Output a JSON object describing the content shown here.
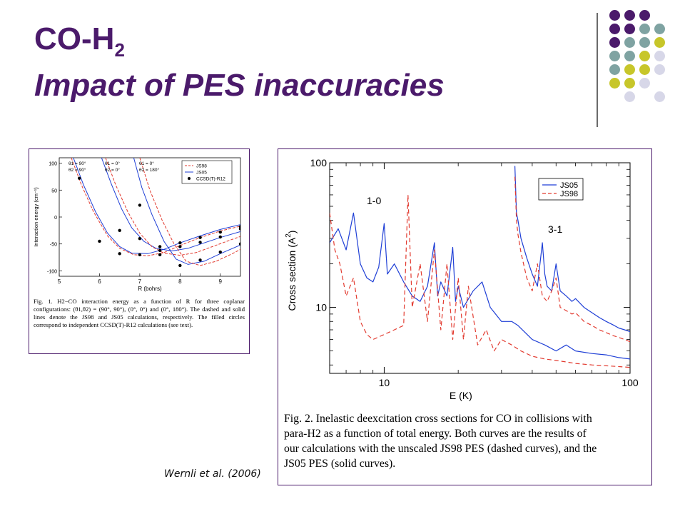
{
  "slide": {
    "title_main": "CO-H",
    "title_sub": "2",
    "title_line2": "Impact of PES inaccuracies",
    "credit": "Wernli et al. (2006)",
    "colors": {
      "title": "#4b1a6b",
      "dot_purple": "#4b1a6b",
      "dot_teal": "#7fa3a2",
      "dot_olive": "#c7c62a",
      "dot_lavender": "#d7d7e8",
      "js05": "#1f3fd6",
      "js98": "#e23a2f"
    }
  },
  "figure1": {
    "caption": "Fig. 1. H2−CO interaction energy as a function of R for three coplanar configurations: (θ1,θ2) = (90°, 90°), (0°, 0°) and (0°, 180°). The dashed and solid lines denote the JS98 and JS05 calculations, respectively. The filled circles correspond to independent CCSD(T)-R12 calculations (see text).",
    "chart_data": {
      "type": "line",
      "xlabel": "R (bohrs)",
      "ylabel": "Interaction energy (cm⁻¹)",
      "xlim": [
        5,
        9.5
      ],
      "ylim": [
        -110,
        110
      ],
      "x_ticks": [
        "5",
        "6",
        "7",
        "8",
        "9"
      ],
      "y_ticks": [
        "100",
        "50",
        "0",
        "-50",
        "-100"
      ],
      "legend": [
        "JS98",
        "JS05",
        "CCSD(T)-R12"
      ],
      "config_labels": [
        {
          "t1": "θ1 = 90°",
          "t2": "θ2 = 90°"
        },
        {
          "t1": "θ1 = 0°",
          "t2": "θ2 = 0°"
        },
        {
          "t1": "θ1 = 0°",
          "t2": "θ2 = 180°"
        }
      ],
      "series": [
        {
          "name": "JS05",
          "config": "90-90",
          "x": [
            5.35,
            5.6,
            5.9,
            6.2,
            6.5,
            6.8,
            7.2,
            7.6,
            8,
            8.5,
            9,
            9.5
          ],
          "y": [
            110,
            60,
            10,
            -30,
            -55,
            -67,
            -68,
            -60,
            -48,
            -35,
            -23,
            -14
          ]
        },
        {
          "name": "JS98",
          "config": "90-90",
          "x": [
            5.3,
            5.55,
            5.85,
            6.2,
            6.5,
            6.85,
            7.2,
            7.6,
            8,
            8.5,
            9,
            9.5
          ],
          "y": [
            110,
            60,
            10,
            -35,
            -58,
            -70,
            -72,
            -66,
            -53,
            -38,
            -26,
            -17
          ]
        },
        {
          "name": "JS05",
          "config": "0-0",
          "x": [
            6.05,
            6.3,
            6.55,
            6.8,
            7.1,
            7.4,
            7.8,
            8.2,
            8.6,
            9,
            9.5
          ],
          "y": [
            110,
            60,
            15,
            -20,
            -45,
            -58,
            -63,
            -58,
            -48,
            -38,
            -27
          ]
        },
        {
          "name": "JS98",
          "config": "0-0",
          "x": [
            6.15,
            6.4,
            6.7,
            7,
            7.3,
            7.6,
            8,
            8.4,
            8.8,
            9.2,
            9.5
          ],
          "y": [
            110,
            60,
            10,
            -30,
            -55,
            -67,
            -71,
            -66,
            -55,
            -44,
            -36
          ]
        },
        {
          "name": "JS05",
          "config": "0-180",
          "x": [
            6.85,
            7.05,
            7.3,
            7.6,
            7.9,
            8.2,
            8.6,
            9,
            9.5
          ],
          "y": [
            110,
            55,
            5,
            -45,
            -78,
            -88,
            -82,
            -68,
            -52
          ]
        },
        {
          "name": "JS98",
          "config": "0-180",
          "x": [
            7.0,
            7.25,
            7.55,
            7.85,
            8.15,
            8.5,
            8.9,
            9.3,
            9.5
          ],
          "y": [
            110,
            50,
            -5,
            -50,
            -82,
            -90,
            -82,
            -68,
            -60
          ]
        }
      ],
      "points": {
        "name": "CCSD(T)-R12",
        "x": [
          5.5,
          6,
          6.5,
          7,
          7.5,
          8,
          8.5,
          9,
          9.5,
          6.5,
          7,
          7.5,
          8,
          8.5,
          9,
          9.5,
          7,
          7.5,
          8,
          8.5,
          9,
          9.5
        ],
        "y": [
          72,
          -45,
          -68,
          -70,
          -62,
          -48,
          -38,
          -28,
          -22,
          -25,
          -40,
          -55,
          -55,
          -47,
          -37,
          -18,
          22,
          -70,
          -90,
          -80,
          -65,
          -50
        ]
      }
    }
  },
  "figure2": {
    "caption_lines": [
      "Fig. 2. Inelastic deexcitation cross sections for CO in collisions with",
      "para-H2 as a function of total energy. Both curves are the results of",
      "our calculations with the unscaled JS98 PES (dashed curves), and the",
      "JS05 PES (solid curves)."
    ],
    "chart_data": {
      "type": "line",
      "xlabel": "E (K)",
      "ylabel": "Cross section (A",
      "ylabel_sup": "2",
      "ylabel_close": ")",
      "x_scale": "log",
      "y_scale": "log",
      "xlim": [
        6,
        100
      ],
      "ylim": [
        3.5,
        100
      ],
      "x_ticks": [
        "10",
        "100"
      ],
      "y_ticks": [
        "100",
        "10"
      ],
      "legend": [
        "JS05",
        "JS98"
      ],
      "annotations": [
        "1-0",
        "3-1"
      ],
      "series": [
        {
          "name": "JS05",
          "transition": "1-0",
          "x": [
            6,
            6.5,
            7,
            7.5,
            8,
            8.5,
            9,
            9.5,
            10,
            10.3,
            11,
            12,
            13,
            14,
            15,
            16,
            16.5,
            17,
            18,
            19,
            19.5,
            20,
            21,
            23,
            25,
            27,
            30,
            33,
            35,
            40,
            45,
            50,
            55,
            60,
            70,
            80,
            90,
            100
          ],
          "y": [
            28,
            35,
            25,
            45,
            20,
            16,
            15,
            19,
            38,
            17,
            20,
            15,
            12,
            11,
            14,
            28,
            12,
            15,
            12,
            26,
            11,
            14,
            10,
            13,
            15,
            10,
            8,
            8,
            7.5,
            6,
            5.5,
            5,
            5.5,
            5,
            4.8,
            4.7,
            4.5,
            4.4
          ]
        },
        {
          "name": "JS98",
          "transition": "1-0",
          "x": [
            6,
            6.3,
            6.6,
            7,
            7.5,
            8,
            8.5,
            9,
            10,
            11,
            12,
            12.5,
            13,
            14,
            15,
            16,
            17,
            18,
            19,
            20,
            21,
            22,
            24,
            26,
            28,
            30,
            33,
            36,
            40,
            45,
            50,
            55,
            60,
            70,
            80,
            90,
            100
          ],
          "y": [
            45,
            25,
            20,
            12,
            16,
            8,
            6.5,
            6,
            6.5,
            7,
            7.5,
            60,
            10,
            20,
            8,
            25,
            7,
            20,
            6,
            16,
            6,
            14,
            5.5,
            7,
            5,
            6,
            5.5,
            5,
            4.6,
            4.4,
            4.3,
            4.2,
            4.1,
            4,
            3.95,
            3.9,
            3.85
          ]
        },
        {
          "name": "JS05",
          "transition": "3-1",
          "x": [
            34,
            34.5,
            35,
            36,
            38,
            40,
            42,
            44,
            45,
            46,
            48,
            50,
            52,
            55,
            58,
            60,
            65,
            70,
            75,
            80,
            85,
            90,
            95,
            100
          ],
          "y": [
            95,
            45,
            40,
            30,
            22,
            17,
            14,
            28,
            17,
            14,
            13,
            20,
            13,
            12,
            11,
            11.5,
            10,
            9.2,
            8.5,
            8,
            7.6,
            7.2,
            7,
            6.8
          ]
        },
        {
          "name": "JS98",
          "transition": "3-1",
          "x": [
            34,
            34.5,
            35,
            36,
            38,
            40,
            42,
            44,
            46,
            48,
            50,
            52,
            55,
            58,
            60,
            65,
            70,
            75,
            80,
            85,
            90,
            95,
            100
          ],
          "y": [
            80,
            40,
            32,
            24,
            16,
            13,
            20,
            12,
            11,
            13,
            16,
            10,
            9.5,
            9,
            9.2,
            8,
            7.5,
            7,
            6.7,
            6.4,
            6.2,
            6,
            5.8
          ]
        }
      ]
    }
  }
}
